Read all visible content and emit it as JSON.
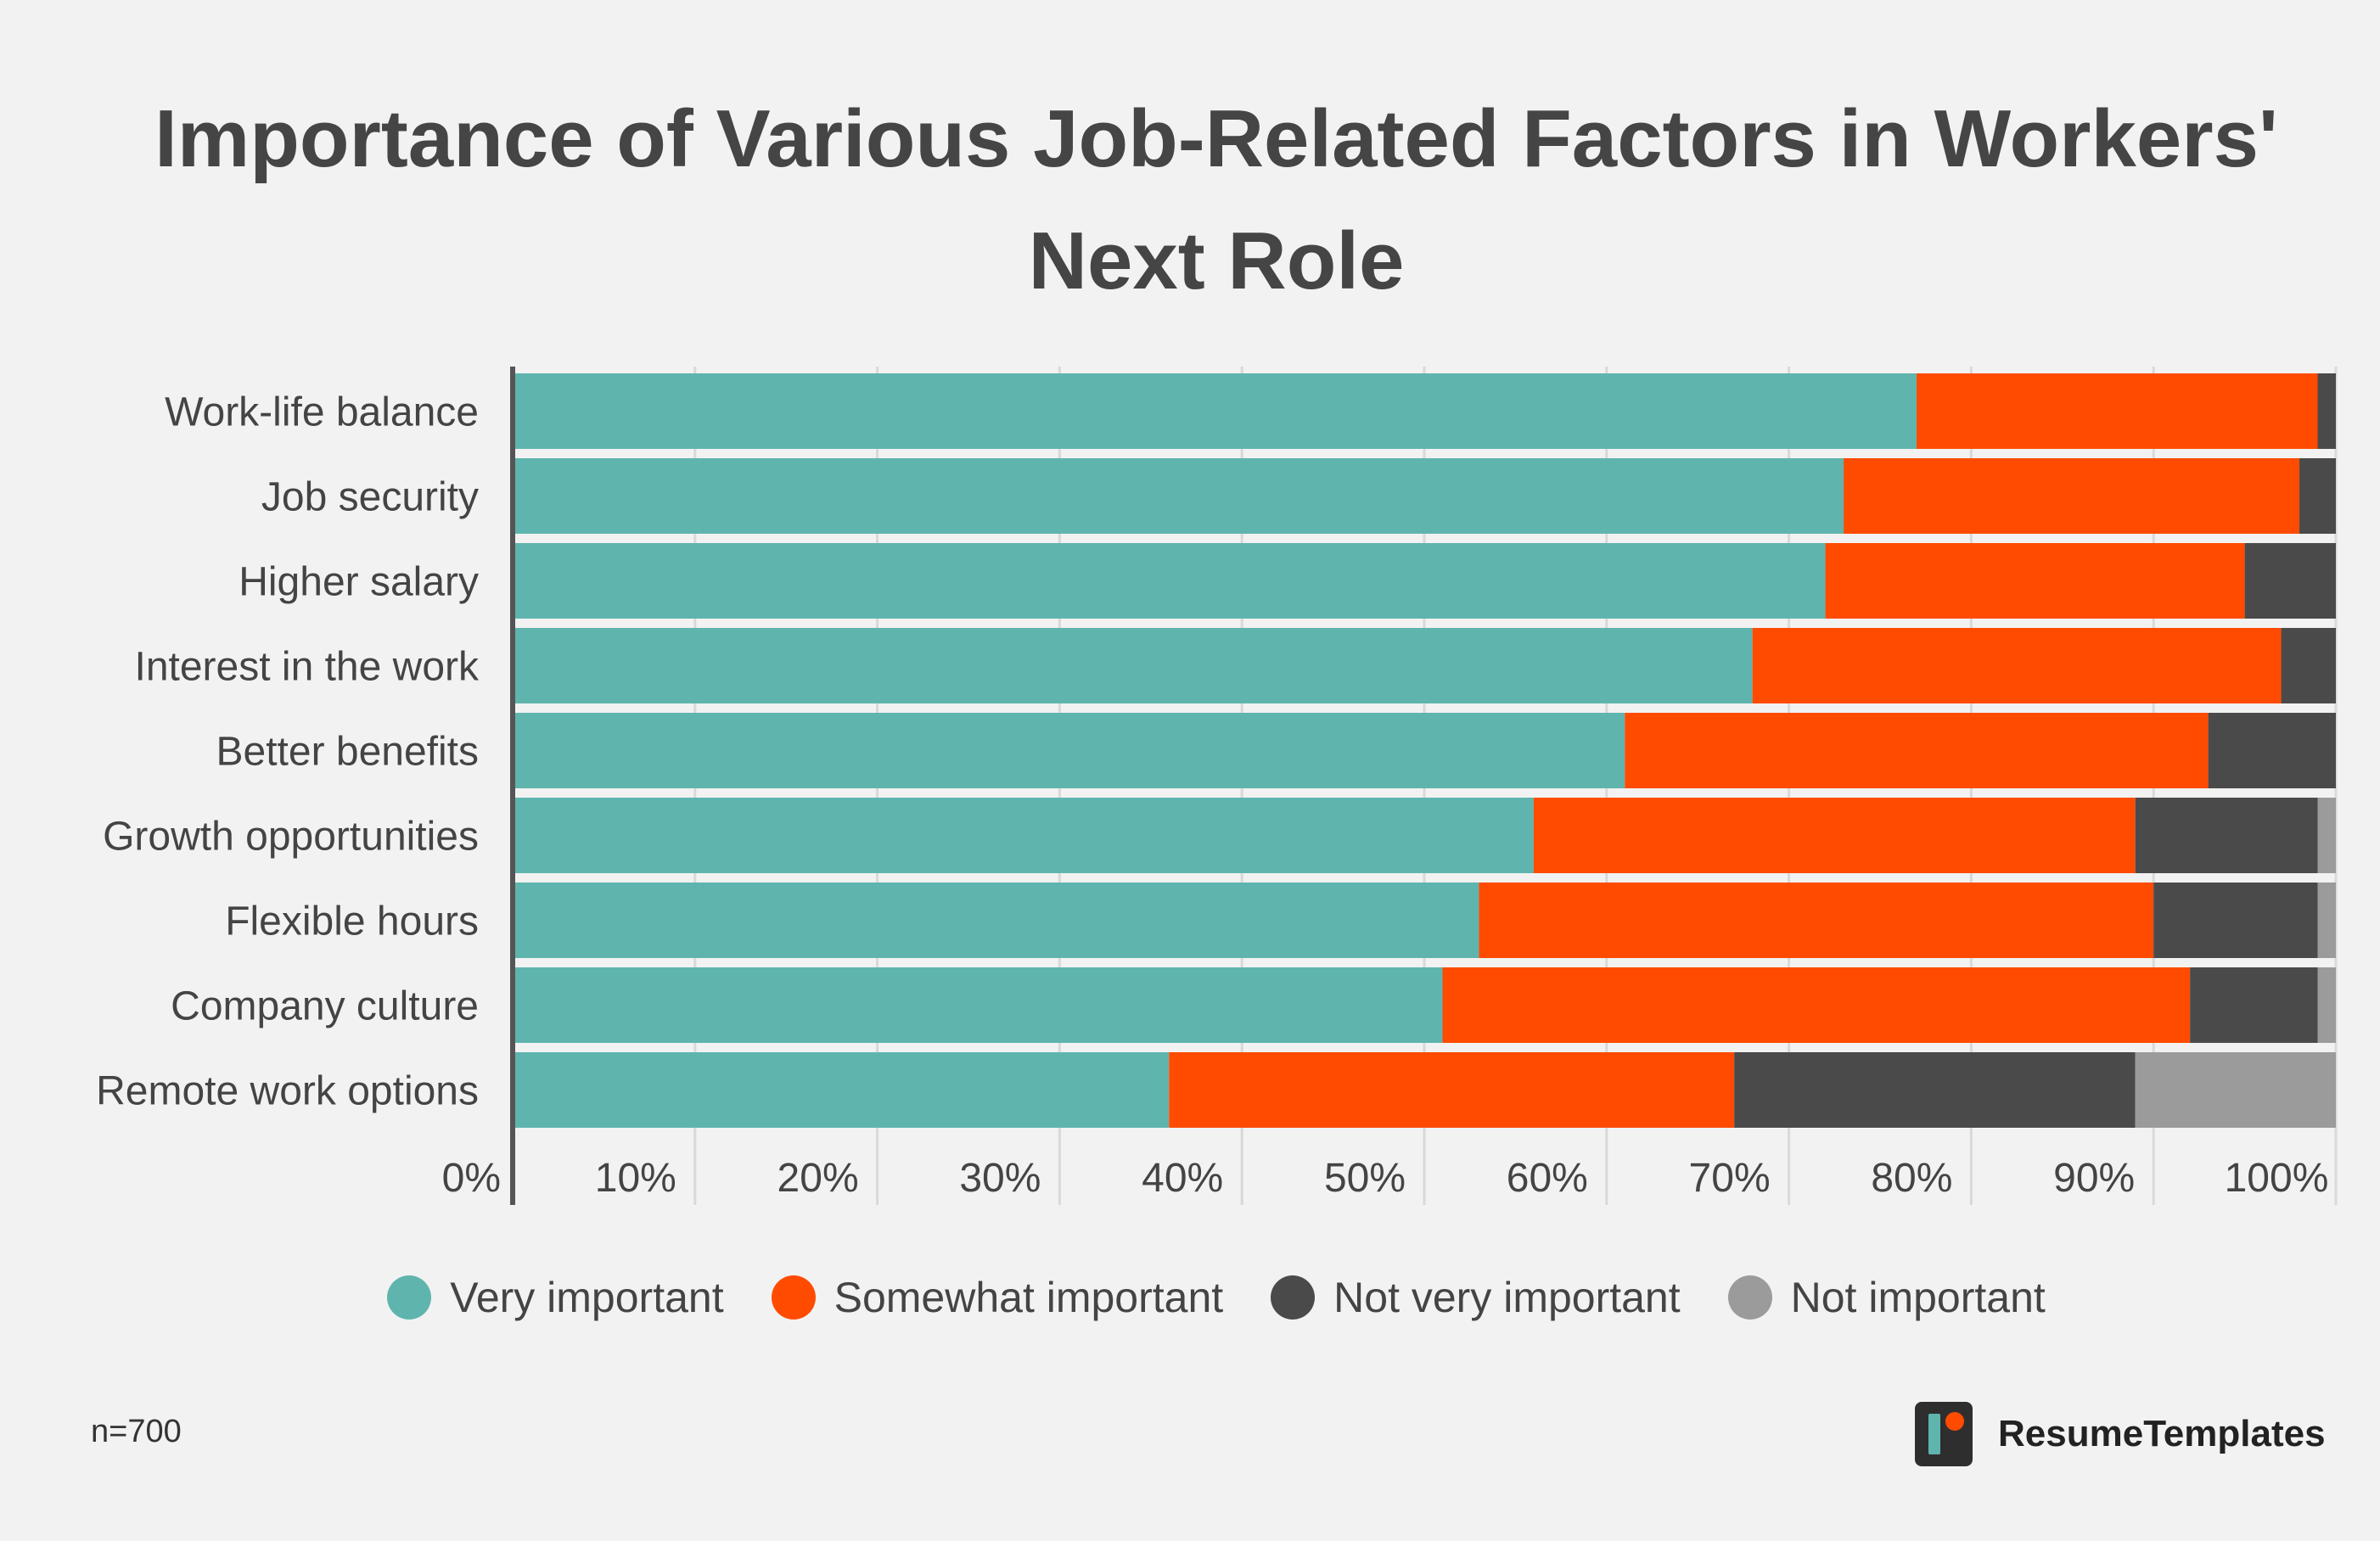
{
  "colors": {
    "background": "#f2f2f2",
    "very_important": "#5fb5ae",
    "somewhat_important": "#ff4b00",
    "not_very_important": "#4a4a4a",
    "not_important": "#9b9b9b"
  },
  "note": "n=700",
  "brand": {
    "name": "ResumeTemplates",
    "logo": "resumetemplates-logo-icon"
  },
  "chart_data": {
    "type": "bar",
    "orientation": "horizontal",
    "stacked": true,
    "title_lines": [
      "Importance of Various Job-Related Factors in Workers'",
      "Next Role"
    ],
    "categories": [
      "Work-life balance",
      "Job security",
      "Higher salary",
      "Interest in the work",
      "Better benefits",
      "Growth opportunities",
      "Flexible hours",
      "Company culture",
      "Remote work options"
    ],
    "series": [
      {
        "name": "Very important",
        "color": "#5fb5ae",
        "values": [
          77.0,
          73.0,
          72.0,
          68.0,
          61.0,
          56.0,
          53.0,
          51.0,
          36.0
        ]
      },
      {
        "name": "Somewhat important",
        "color": "#ff4b00",
        "values": [
          22.0,
          25.0,
          23.0,
          29.0,
          32.0,
          33.0,
          37.0,
          41.0,
          31.0
        ]
      },
      {
        "name": "Not very important",
        "color": "#4a4a4a",
        "values": [
          1.0,
          2.0,
          5.0,
          3.0,
          7.0,
          10.0,
          9.0,
          7.0,
          22.0
        ]
      },
      {
        "name": "Not important",
        "color": "#9b9b9b",
        "values": [
          0.0,
          0.0,
          0.0,
          0.0,
          0.0,
          1.0,
          1.0,
          1.0,
          11.0
        ]
      }
    ],
    "xlim": [
      0,
      100
    ],
    "xticks": [
      0,
      10,
      20,
      30,
      40,
      50,
      60,
      70,
      80,
      90,
      100
    ],
    "xtick_labels": [
      "0%",
      "10%",
      "20%",
      "30%",
      "40%",
      "50%",
      "60%",
      "70%",
      "80%",
      "90%",
      "100%"
    ],
    "grid": true,
    "legend_position": "bottom-center"
  }
}
